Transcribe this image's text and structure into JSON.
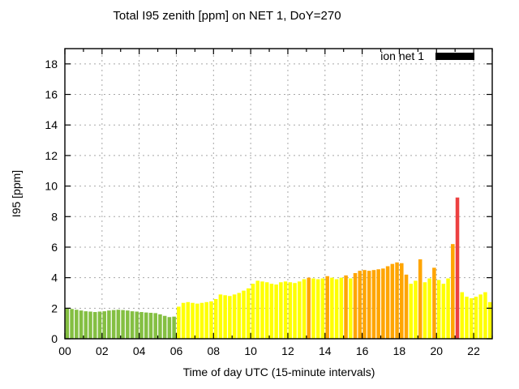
{
  "title": "Total I95 zenith [ppm] on NET 1, DoY=270",
  "legend": {
    "label": "ion net 1",
    "swatch_color": "#000000"
  },
  "axes": {
    "ylabel": "I95 [ppm]",
    "xlabel": "Time of day UTC (15-minute intervals)",
    "ytick_labels": [
      "0",
      "2",
      "4",
      "6",
      "8",
      "10",
      "12",
      "14",
      "16",
      "18"
    ],
    "ytick_values": [
      0,
      2,
      4,
      6,
      8,
      10,
      12,
      14,
      16,
      18
    ],
    "xtick_labels": [
      "00",
      "02",
      "04",
      "06",
      "08",
      "10",
      "12",
      "14",
      "16",
      "18",
      "20",
      "22"
    ],
    "xtick_hours": [
      0,
      2,
      4,
      6,
      8,
      10,
      12,
      14,
      16,
      18,
      20,
      22
    ],
    "ylim": [
      0,
      19
    ],
    "xlim_hours": [
      0,
      23
    ],
    "grid": true
  },
  "colors": {
    "green": "#84bf42",
    "yellow": "#ffff00",
    "orange": "#ffa500",
    "red": "#ed4141",
    "grid": "#a8a8a8",
    "axis": "#000000",
    "background": "#ffffff"
  },
  "chart_data": {
    "type": "bar",
    "title": "Total I95 zenith [ppm] on NET 1, DoY=270",
    "xlabel": "Time of day UTC (15-minute intervals)",
    "ylabel": "I95 [ppm]",
    "ylim": [
      0,
      19
    ],
    "interval_minutes": 15,
    "legend_entries": [
      "ion net 1"
    ],
    "legend_position": "top-right-inside",
    "categories": [
      "00:00",
      "00:15",
      "00:30",
      "00:45",
      "01:00",
      "01:15",
      "01:30",
      "01:45",
      "02:00",
      "02:15",
      "02:30",
      "02:45",
      "03:00",
      "03:15",
      "03:30",
      "03:45",
      "04:00",
      "04:15",
      "04:30",
      "04:45",
      "05:00",
      "05:15",
      "05:30",
      "05:45",
      "06:00",
      "06:15",
      "06:30",
      "06:45",
      "07:00",
      "07:15",
      "07:30",
      "07:45",
      "08:00",
      "08:15",
      "08:30",
      "08:45",
      "09:00",
      "09:15",
      "09:30",
      "09:45",
      "10:00",
      "10:15",
      "10:30",
      "10:45",
      "11:00",
      "11:15",
      "11:30",
      "11:45",
      "12:00",
      "12:15",
      "12:30",
      "12:45",
      "13:00",
      "13:15",
      "13:30",
      "13:45",
      "14:00",
      "14:15",
      "14:30",
      "14:45",
      "15:00",
      "15:15",
      "15:30",
      "15:45",
      "16:00",
      "16:15",
      "16:30",
      "16:45",
      "17:00",
      "17:15",
      "17:30",
      "17:45",
      "18:00",
      "18:15",
      "18:30",
      "18:45",
      "19:00",
      "19:15",
      "19:30",
      "19:45",
      "20:00",
      "20:15",
      "20:30",
      "20:45",
      "21:00",
      "21:15",
      "21:30",
      "21:45",
      "22:00",
      "22:15",
      "22:30",
      "22:45"
    ],
    "values": [
      2.0,
      1.95,
      1.9,
      1.85,
      1.8,
      1.78,
      1.75,
      1.78,
      1.8,
      1.85,
      1.88,
      1.9,
      1.88,
      1.85,
      1.8,
      1.78,
      1.75,
      1.72,
      1.7,
      1.68,
      1.6,
      1.5,
      1.42,
      1.45,
      2.1,
      2.35,
      2.4,
      2.35,
      2.3,
      2.35,
      2.4,
      2.45,
      2.6,
      2.9,
      2.85,
      2.8,
      2.9,
      3.0,
      3.15,
      3.3,
      3.6,
      3.8,
      3.75,
      3.7,
      3.6,
      3.55,
      3.7,
      3.75,
      3.7,
      3.65,
      3.75,
      3.9,
      4.0,
      3.95,
      3.9,
      3.95,
      4.1,
      4.0,
      3.9,
      4.0,
      4.15,
      3.95,
      4.3,
      4.45,
      4.5,
      4.45,
      4.5,
      4.55,
      4.6,
      4.75,
      4.9,
      5.0,
      4.95,
      4.2,
      3.6,
      3.8,
      5.2,
      3.7,
      3.95,
      4.65,
      3.85,
      3.6,
      3.95,
      6.2,
      9.25,
      3.05,
      2.75,
      2.65,
      2.75,
      2.9,
      3.05,
      2.4
    ],
    "bar_colors": [
      "green",
      "green",
      "green",
      "green",
      "green",
      "green",
      "green",
      "green",
      "green",
      "green",
      "green",
      "green",
      "green",
      "green",
      "green",
      "green",
      "green",
      "green",
      "green",
      "green",
      "green",
      "green",
      "green",
      "green",
      "yellow",
      "yellow",
      "yellow",
      "yellow",
      "yellow",
      "yellow",
      "yellow",
      "yellow",
      "yellow",
      "yellow",
      "yellow",
      "yellow",
      "yellow",
      "yellow",
      "yellow",
      "yellow",
      "yellow",
      "yellow",
      "yellow",
      "yellow",
      "yellow",
      "yellow",
      "yellow",
      "yellow",
      "yellow",
      "yellow",
      "yellow",
      "yellow",
      "orange",
      "yellow",
      "yellow",
      "yellow",
      "orange",
      "yellow",
      "yellow",
      "yellow",
      "orange",
      "yellow",
      "orange",
      "orange",
      "orange",
      "orange",
      "orange",
      "orange",
      "orange",
      "orange",
      "orange",
      "orange",
      "orange",
      "orange",
      "yellow",
      "yellow",
      "orange",
      "yellow",
      "yellow",
      "orange",
      "yellow",
      "yellow",
      "yellow",
      "orange",
      "red",
      "yellow",
      "yellow",
      "yellow",
      "yellow",
      "yellow",
      "yellow",
      "yellow"
    ]
  }
}
